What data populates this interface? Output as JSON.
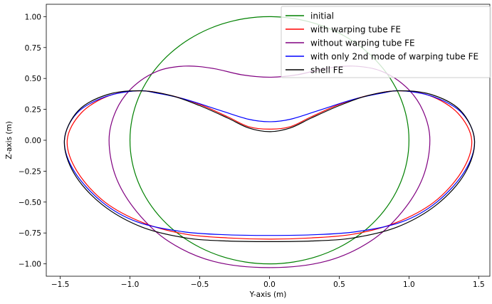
{
  "chart_data": {
    "type": "line",
    "title": "",
    "xlabel": "Y-axis (m)",
    "ylabel": "Z-axis (m)",
    "xlim": [
      -1.6,
      1.58
    ],
    "ylim": [
      -1.1,
      1.1
    ],
    "xticks": [
      -1.5,
      -1.0,
      -0.5,
      0.0,
      0.5,
      1.0,
      1.5
    ],
    "xtick_labels": [
      "−1.5",
      "−1.0",
      "−0.5",
      "0.0",
      "0.5",
      "1.0",
      "1.5"
    ],
    "yticks": [
      -1.0,
      -0.75,
      -0.5,
      -0.25,
      0.0,
      0.25,
      0.5,
      0.75,
      1.0
    ],
    "ytick_labels": [
      "−1.00",
      "−0.75",
      "−0.50",
      "−0.25",
      "0.00",
      "0.25",
      "0.50",
      "0.75",
      "1.00"
    ],
    "grid": false,
    "legend_position": "top-right",
    "series": [
      {
        "name": "initial",
        "color": "#008000",
        "points": [
          [
            0.0,
            1.0
          ],
          [
            0.35,
            0.94
          ],
          [
            0.65,
            0.76
          ],
          [
            0.87,
            0.5
          ],
          [
            0.98,
            0.2
          ],
          [
            1.0,
            0.0
          ],
          [
            0.98,
            -0.2
          ],
          [
            0.87,
            -0.5
          ],
          [
            0.65,
            -0.76
          ],
          [
            0.35,
            -0.94
          ],
          [
            0.0,
            -1.0
          ],
          [
            -0.35,
            -0.94
          ],
          [
            -0.65,
            -0.76
          ],
          [
            -0.87,
            -0.5
          ],
          [
            -0.98,
            -0.2
          ],
          [
            -1.0,
            0.0
          ],
          [
            -0.98,
            0.2
          ],
          [
            -0.87,
            0.5
          ],
          [
            -0.65,
            -0.76
          ],
          [
            -0.35,
            0.94
          ],
          [
            0.0,
            1.0
          ]
        ]
      },
      {
        "name": "with warping tube FE",
        "color": "#ff0000",
        "points": [
          [
            0.0,
            0.09
          ],
          [
            0.15,
            0.11
          ],
          [
            0.3,
            0.19
          ],
          [
            0.5,
            0.29
          ],
          [
            0.7,
            0.36
          ],
          [
            0.92,
            0.4
          ],
          [
            1.15,
            0.36
          ],
          [
            1.35,
            0.22
          ],
          [
            1.45,
            0.0
          ],
          [
            1.38,
            -0.25
          ],
          [
            1.18,
            -0.5
          ],
          [
            0.9,
            -0.67
          ],
          [
            0.6,
            -0.76
          ],
          [
            0.3,
            -0.79
          ],
          [
            0.0,
            -0.8
          ],
          [
            -0.3,
            -0.79
          ],
          [
            -0.6,
            -0.76
          ],
          [
            -0.9,
            -0.67
          ],
          [
            -1.18,
            -0.5
          ],
          [
            -1.38,
            -0.25
          ],
          [
            -1.45,
            0.0
          ],
          [
            -1.35,
            0.22
          ],
          [
            -1.15,
            0.36
          ],
          [
            -0.92,
            0.4
          ],
          [
            -0.7,
            0.36
          ],
          [
            -0.5,
            0.29
          ],
          [
            -0.3,
            0.19
          ],
          [
            -0.15,
            0.11
          ],
          [
            0.0,
            0.09
          ]
        ]
      },
      {
        "name": "without warping tube FE",
        "color": "#800080",
        "points": [
          [
            0.0,
            0.51
          ],
          [
            0.2,
            0.53
          ],
          [
            0.4,
            0.58
          ],
          [
            0.6,
            0.6
          ],
          [
            0.8,
            0.56
          ],
          [
            0.98,
            0.43
          ],
          [
            1.1,
            0.24
          ],
          [
            1.15,
            0.0
          ],
          [
            1.1,
            -0.3
          ],
          [
            0.95,
            -0.58
          ],
          [
            0.72,
            -0.82
          ],
          [
            0.4,
            -0.98
          ],
          [
            0.0,
            -1.03
          ],
          [
            -0.4,
            -0.98
          ],
          [
            -0.72,
            -0.82
          ],
          [
            -0.95,
            -0.58
          ],
          [
            -1.1,
            -0.3
          ],
          [
            -1.15,
            0.0
          ],
          [
            -1.1,
            0.24
          ],
          [
            -0.98,
            0.43
          ],
          [
            -0.8,
            0.56
          ],
          [
            -0.6,
            0.6
          ],
          [
            -0.4,
            0.58
          ],
          [
            -0.2,
            0.53
          ],
          [
            0.0,
            0.51
          ]
        ]
      },
      {
        "name": "with only 2nd mode of warping tube FE",
        "color": "#0000ff",
        "points": [
          [
            0.0,
            0.15
          ],
          [
            0.15,
            0.17
          ],
          [
            0.35,
            0.24
          ],
          [
            0.6,
            0.33
          ],
          [
            0.8,
            0.38
          ],
          [
            0.95,
            0.4
          ],
          [
            1.18,
            0.35
          ],
          [
            1.38,
            0.22
          ],
          [
            1.47,
            0.0
          ],
          [
            1.4,
            -0.25
          ],
          [
            1.2,
            -0.5
          ],
          [
            0.95,
            -0.66
          ],
          [
            0.62,
            -0.74
          ],
          [
            0.3,
            -0.765
          ],
          [
            0.0,
            -0.77
          ],
          [
            -0.3,
            -0.765
          ],
          [
            -0.62,
            -0.74
          ],
          [
            -0.95,
            -0.66
          ],
          [
            -1.2,
            -0.5
          ],
          [
            -1.4,
            -0.25
          ],
          [
            -1.47,
            0.0
          ],
          [
            -1.38,
            0.22
          ],
          [
            -1.18,
            0.35
          ],
          [
            -0.95,
            0.4
          ],
          [
            -0.8,
            0.38
          ],
          [
            -0.6,
            0.33
          ],
          [
            -0.35,
            0.24
          ],
          [
            -0.15,
            0.17
          ],
          [
            0.0,
            0.15
          ]
        ]
      },
      {
        "name": "shell FE",
        "color": "#000000",
        "points": [
          [
            0.0,
            0.07
          ],
          [
            0.15,
            0.1
          ],
          [
            0.3,
            0.18
          ],
          [
            0.5,
            0.28
          ],
          [
            0.7,
            0.36
          ],
          [
            0.92,
            0.4
          ],
          [
            1.16,
            0.37
          ],
          [
            1.37,
            0.24
          ],
          [
            1.47,
            0.0
          ],
          [
            1.4,
            -0.27
          ],
          [
            1.2,
            -0.52
          ],
          [
            0.92,
            -0.7
          ],
          [
            0.6,
            -0.79
          ],
          [
            0.3,
            -0.815
          ],
          [
            0.0,
            -0.82
          ],
          [
            -0.3,
            -0.815
          ],
          [
            -0.6,
            -0.79
          ],
          [
            -0.92,
            -0.7
          ],
          [
            -1.2,
            -0.52
          ],
          [
            -1.4,
            -0.27
          ],
          [
            -1.47,
            0.0
          ],
          [
            -1.37,
            0.24
          ],
          [
            -1.16,
            0.37
          ],
          [
            -0.92,
            0.4
          ],
          [
            -0.7,
            0.36
          ],
          [
            -0.5,
            0.28
          ],
          [
            -0.3,
            0.18
          ],
          [
            -0.15,
            0.1
          ],
          [
            0.0,
            0.07
          ]
        ]
      }
    ]
  }
}
